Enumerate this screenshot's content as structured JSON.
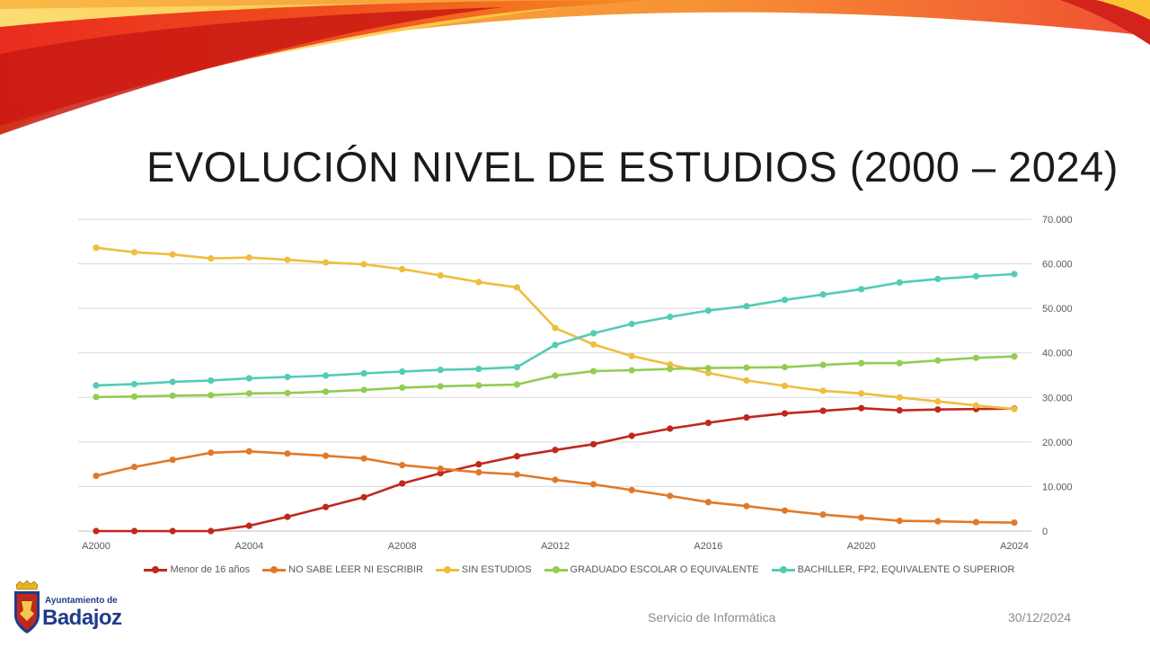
{
  "slide": {
    "title": "EVOLUCIÓN NIVEL DE ESTUDIOS (2000 – 2024)",
    "footer_center": "Servicio de Informática",
    "footer_date": "30/12/2024",
    "logo_line1": "Ayuntamiento de",
    "logo_line2": "Badajoz"
  },
  "chart_data": {
    "type": "line",
    "title": "",
    "xlabel": "",
    "ylabel": "",
    "x": [
      2000,
      2001,
      2002,
      2003,
      2004,
      2005,
      2006,
      2007,
      2008,
      2009,
      2010,
      2011,
      2012,
      2013,
      2014,
      2015,
      2016,
      2017,
      2018,
      2019,
      2020,
      2021,
      2022,
      2023,
      2024
    ],
    "x_tick_labels": [
      "A2000",
      "A2004",
      "A2008",
      "A2012",
      "A2016",
      "A2020",
      "A2024"
    ],
    "x_tick_values": [
      2000,
      2004,
      2008,
      2012,
      2016,
      2020,
      2024
    ],
    "ylim": [
      0,
      70000
    ],
    "y_ticks": [
      0,
      10000,
      20000,
      30000,
      40000,
      50000,
      60000,
      70000
    ],
    "y_tick_labels": [
      "0",
      "10.000",
      "20.000",
      "30.000",
      "40.000",
      "50.000",
      "60.000",
      "70.000"
    ],
    "y_axis_side": "right",
    "grid": true,
    "legend_position": "bottom",
    "series": [
      {
        "name": "Menor de 16 años",
        "color": "#c0281c",
        "values": [
          0,
          0,
          0,
          0,
          1200,
          3200,
          5400,
          7600,
          10700,
          13000,
          15000,
          16800,
          18200,
          19500,
          21400,
          23000,
          24300,
          25500,
          26400,
          27000,
          27600,
          27100,
          27300,
          27400,
          27500
        ]
      },
      {
        "name": "NO SABE LEER NI ESCRIBIR",
        "color": "#e07a2b",
        "values": [
          12400,
          14400,
          16000,
          17600,
          17900,
          17400,
          16900,
          16300,
          14800,
          14000,
          13200,
          12700,
          11500,
          10500,
          9200,
          7900,
          6500,
          5600,
          4600,
          3700,
          3000,
          2300,
          2200,
          2000,
          1900
        ]
      },
      {
        "name": "SIN ESTUDIOS",
        "color": "#efbe3e",
        "values": [
          63600,
          62600,
          62100,
          61200,
          61400,
          60900,
          60300,
          59900,
          58800,
          57400,
          55900,
          54700,
          45600,
          41900,
          39300,
          37400,
          35500,
          33800,
          32600,
          31500,
          30900,
          30000,
          29100,
          28200,
          27400
        ]
      },
      {
        "name": "GRADUADO ESCOLAR O EQUIVALENTE",
        "color": "#93cc52",
        "values": [
          30100,
          30200,
          30400,
          30500,
          30900,
          31000,
          31300,
          31700,
          32200,
          32500,
          32700,
          32900,
          34900,
          35900,
          36100,
          36400,
          36600,
          36700,
          36800,
          37300,
          37700,
          37700,
          38300,
          38900,
          39200
        ]
      },
      {
        "name": "BACHILLER, FP2, EQUIVALENTE O SUPERIOR",
        "color": "#54cbb5",
        "values": [
          32700,
          33000,
          33500,
          33800,
          34300,
          34600,
          34900,
          35400,
          35800,
          36200,
          36400,
          36800,
          41800,
          44400,
          46500,
          48100,
          49500,
          50500,
          51900,
          53100,
          54300,
          55800,
          56600,
          57200,
          57700
        ]
      }
    ]
  }
}
